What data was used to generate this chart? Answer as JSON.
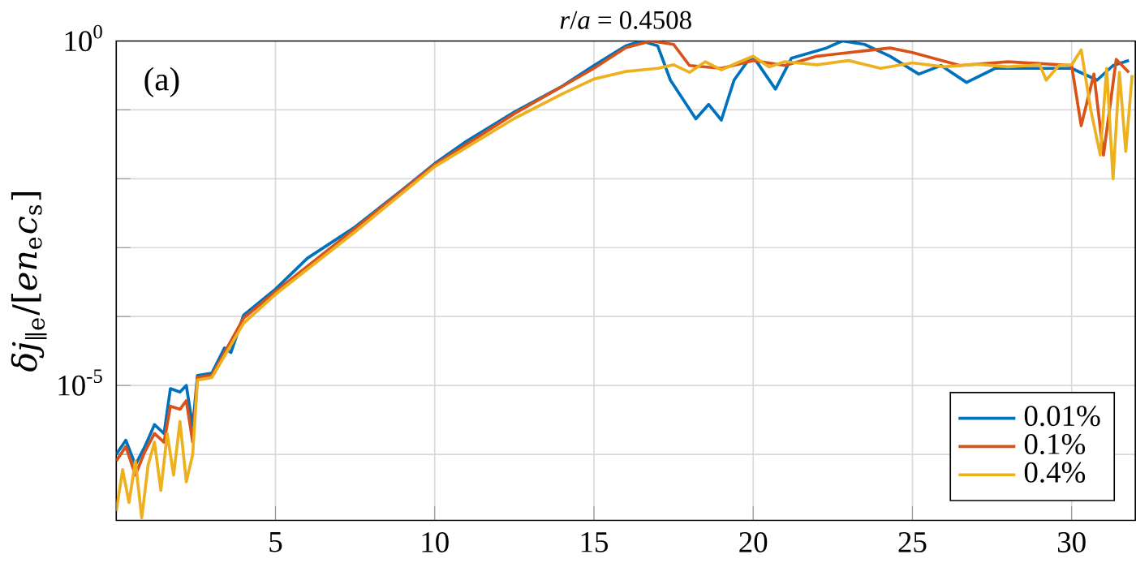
{
  "chart_data": {
    "type": "line",
    "title": "*r*/*a* = 0.4508",
    "ylabel": "*δj*$_{∥e}$/[*en*$_{e}$*c*$_{s}$]",
    "annotations": [
      "(a)"
    ],
    "log": "y",
    "grid": true,
    "legend": "bottom right",
    "xlim": [
      0,
      32
    ],
    "xticks": [
      5,
      10,
      15,
      20,
      25,
      30
    ],
    "ylim": [
      1.1e-07,
      1
    ],
    "yticks": [
      {
        "value": 1e-06,
        "label": null
      },
      {
        "value": 1e-05,
        "label": "10$^{-5}$"
      },
      {
        "value": 0.0001,
        "label": null
      },
      {
        "value": 0.001,
        "label": null
      },
      {
        "value": 0.01,
        "label": null
      },
      {
        "value": 0.1,
        "label": null
      },
      {
        "value": 1,
        "label": "10$^{0}$"
      }
    ],
    "series": [
      {
        "name": "0.01%",
        "color": "#0072bd",
        "x": [
          0,
          0.3,
          0.6,
          0.9,
          1.2,
          1.5,
          1.7,
          2.0,
          2.2,
          2.4,
          2.55,
          3,
          3.4,
          3.6,
          4,
          5,
          6,
          7.5,
          9,
          10,
          11,
          12.5,
          14,
          15,
          16,
          16.5,
          17,
          17.4,
          18.2,
          18.6,
          19.0,
          19.4,
          19.8,
          20,
          20.7,
          21.2,
          22.3,
          22.8,
          23.5,
          24.3,
          25.2,
          25.9,
          26.7,
          27.6,
          29.1,
          30,
          30.8,
          31.3,
          31.8
        ],
        "values": [
          1e-06,
          1.6e-06,
          7e-07,
          1.3e-06,
          2.7e-06,
          2e-06,
          9e-06,
          8e-06,
          1e-05,
          2.5e-06,
          1.4e-05,
          1.5e-05,
          3.5e-05,
          3e-05,
          0.000105,
          0.00025,
          0.0007,
          0.002,
          0.007,
          0.0166,
          0.035,
          0.093,
          0.22,
          0.44,
          0.85,
          1.0,
          0.85,
          0.27,
          0.074,
          0.12,
          0.071,
          0.27,
          0.49,
          0.59,
          0.2,
          0.56,
          0.79,
          1.0,
          0.89,
          0.6,
          0.33,
          0.44,
          0.25,
          0.4,
          0.4,
          0.4,
          0.27,
          0.44,
          0.52
        ]
      },
      {
        "name": "0.1%",
        "color": "#d95319",
        "x": [
          0,
          0.3,
          0.6,
          0.9,
          1.2,
          1.5,
          1.7,
          2.0,
          2.2,
          2.4,
          2.55,
          3,
          4,
          5,
          7.5,
          10,
          12.5,
          15,
          16,
          16.8,
          17.5,
          18,
          19,
          20,
          21,
          22,
          23.5,
          24.3,
          25,
          26.5,
          28,
          30,
          30.3,
          30.7,
          31,
          31.4,
          31.8
        ],
        "values": [
          8e-07,
          1.3e-06,
          5e-07,
          1.1e-06,
          2e-06,
          1.5e-06,
          5e-06,
          4.5e-06,
          6e-06,
          1.5e-06,
          1.3e-05,
          1.4e-05,
          9.5e-05,
          0.00023,
          0.0019,
          0.016,
          0.088,
          0.4,
          0.8,
          1.0,
          0.89,
          0.44,
          0.4,
          0.52,
          0.44,
          0.6,
          0.72,
          0.79,
          0.68,
          0.44,
          0.5,
          0.44,
          0.059,
          0.33,
          0.022,
          0.54,
          0.35
        ]
      },
      {
        "name": "0.4%",
        "color": "#edb120",
        "x": [
          0,
          0.2,
          0.4,
          0.6,
          0.8,
          1.0,
          1.2,
          1.4,
          1.6,
          1.8,
          2.0,
          2.2,
          2.4,
          2.55,
          3,
          4,
          5,
          7.5,
          10,
          12.5,
          14,
          15,
          16,
          17,
          17.5,
          18,
          18.5,
          19,
          19.5,
          20,
          20.5,
          21,
          22,
          23,
          24,
          25,
          26,
          27,
          28,
          29,
          29.2,
          29.6,
          30,
          30.3,
          30.6,
          30.9,
          31.1,
          31.3,
          31.5,
          31.7,
          31.9
        ],
        "values": [
          1.5e-07,
          6e-07,
          2e-07,
          8e-07,
          1.2e-07,
          7e-07,
          1.5e-06,
          3e-07,
          2e-06,
          5e-07,
          3e-06,
          4e-07,
          1e-06,
          1.2e-05,
          1.3e-05,
          8e-05,
          0.00021,
          0.0017,
          0.015,
          0.075,
          0.17,
          0.28,
          0.36,
          0.4,
          0.45,
          0.35,
          0.5,
          0.38,
          0.48,
          0.6,
          0.42,
          0.5,
          0.45,
          0.52,
          0.4,
          0.48,
          0.42,
          0.46,
          0.42,
          0.45,
          0.27,
          0.44,
          0.45,
          0.74,
          0.1,
          0.022,
          0.4,
          0.01,
          0.35,
          0.025,
          0.32
        ]
      }
    ]
  }
}
